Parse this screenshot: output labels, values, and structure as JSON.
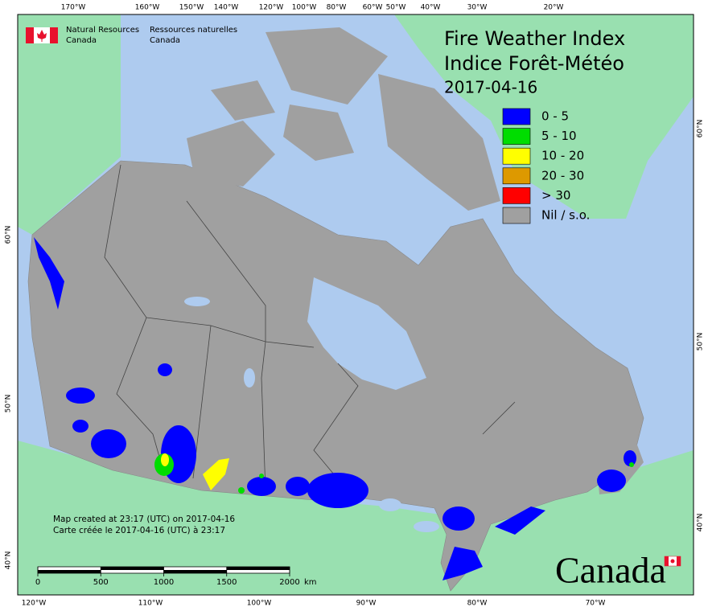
{
  "header": {
    "agency_en": [
      "Natural Resources",
      "Canada"
    ],
    "agency_fr": [
      "Ressources naturelles",
      "Canada"
    ]
  },
  "title": [
    "Fire Weather Index",
    "Indice Forêt-Météo"
  ],
  "date": "2017-04-16",
  "legend": [
    {
      "label": "0 - 5",
      "color": "#0000ff"
    },
    {
      "label": "5 - 10",
      "color": "#00dd00"
    },
    {
      "label": "10 - 20",
      "color": "#ffff00"
    },
    {
      "label": "20 - 30",
      "color": "#dd9900"
    },
    {
      "label": "> 30",
      "color": "#ff0000"
    },
    {
      "label": "Nil / s.o.",
      "color": "#a0a0a0"
    }
  ],
  "graticule": {
    "top": [
      "170°W",
      "160°W",
      "150°W",
      "140°W",
      "120°W",
      "100°W",
      "80°W",
      "60°W",
      "50°W",
      "40°W",
      "30°W",
      "20°W"
    ],
    "bottom": [
      "120°W",
      "110°W",
      "100°W",
      "90°W",
      "80°W",
      "70°W"
    ],
    "left": [
      "60°N",
      "50°N",
      "40°N"
    ],
    "right": [
      "60°N",
      "50°N",
      "40°N"
    ]
  },
  "notes": [
    "Map created at 23:17 (UTC) on 2017-04-16",
    "Carte créée le 2017-04-16 (UTC) à 23:17"
  ],
  "scale_bar": {
    "ticks": [
      0,
      500,
      1000,
      1500,
      2000
    ],
    "unit": "km"
  },
  "wordmark": "Canada"
}
